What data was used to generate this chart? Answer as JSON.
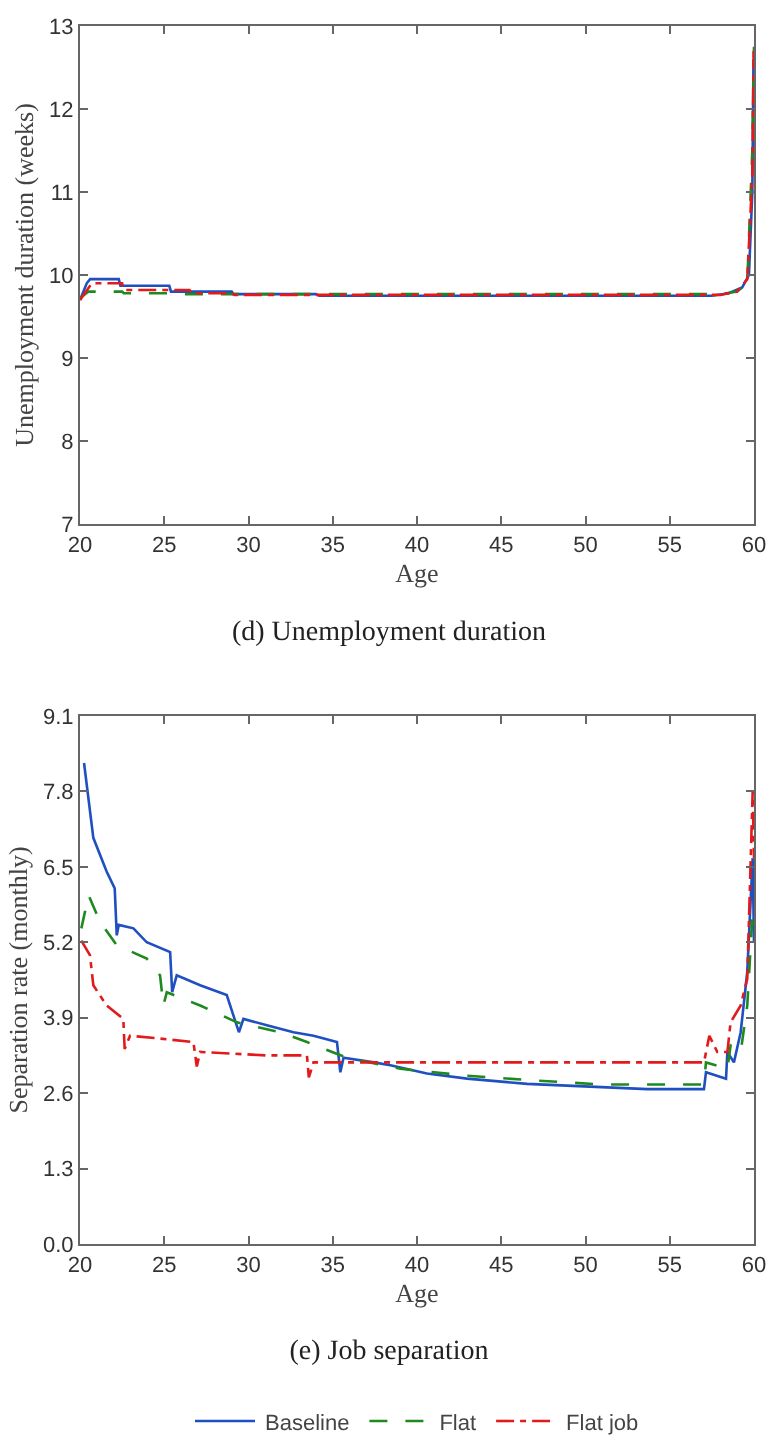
{
  "chart_data": [
    {
      "type": "line",
      "title": "(d) Unemployment duration",
      "xlabel": "Age",
      "ylabel": "Unemployment duration (weeks)",
      "xlim": [
        20,
        60
      ],
      "xticks": [
        20,
        25,
        30,
        35,
        40,
        45,
        50,
        55,
        60
      ],
      "ylim": [
        7,
        13
      ],
      "yticks": [
        7,
        8,
        9,
        10,
        11,
        12,
        13
      ],
      "grid": false,
      "series": [
        {
          "color": "#1f4fc0",
          "line_style": "solid",
          "x": [
            20,
            20.4,
            20.6,
            22.3,
            22.4,
            25.3,
            25.4,
            29,
            29.1,
            34,
            34.2,
            57.5,
            58.5,
            59.3,
            59.7,
            59.9,
            59.97
          ],
          "values": [
            9.7,
            9.9,
            9.95,
            9.95,
            9.87,
            9.87,
            9.8,
            9.8,
            9.77,
            9.77,
            9.75,
            9.75,
            9.78,
            9.85,
            10,
            11,
            12.6
          ]
        },
        {
          "color": "#1e8a1e",
          "line_style": "dashed",
          "x": [
            20,
            20.5,
            22.5,
            22.6,
            26,
            26.2,
            58,
            59,
            59.6,
            59.9,
            60
          ],
          "values": [
            9.72,
            9.8,
            9.8,
            9.78,
            9.78,
            9.77,
            9.77,
            9.8,
            9.9,
            11.5,
            12.75
          ]
        },
        {
          "color": "#e31a1c",
          "line_style": "dashdot",
          "x": [
            20,
            20.7,
            22.5,
            22.6,
            26.5,
            26.6,
            29,
            29.2,
            58,
            59,
            59.6,
            59.9,
            59.98
          ],
          "values": [
            9.7,
            9.9,
            9.9,
            9.82,
            9.82,
            9.78,
            9.78,
            9.76,
            9.76,
            9.8,
            9.95,
            11.2,
            12.7
          ]
        }
      ]
    },
    {
      "type": "line",
      "title": "(e) Job separation",
      "xlabel": "Age",
      "ylabel": "Separation rate (monthly)",
      "xlim": [
        20,
        60
      ],
      "xticks": [
        20,
        25,
        30,
        35,
        40,
        45,
        50,
        55,
        60
      ],
      "ylim": [
        0,
        9.1
      ],
      "yticks": [
        {
          "value": 0,
          "label": "0.0"
        },
        1.3,
        2.6,
        3.9,
        5.2,
        6.5,
        7.8,
        9.1
      ],
      "grid": false,
      "legend": "bottom",
      "series": [
        {
          "name": "Baseline",
          "color": "#1f4fc0",
          "line_style": "solid",
          "x": [
            20.24,
            20.79,
            21.58,
            22.06,
            22.18,
            22.3,
            23.17,
            23.96,
            25.35,
            25.47,
            25.74,
            27.13,
            28.71,
            29.43,
            29.7,
            31.09,
            32.67,
            33.86,
            35.25,
            35.45,
            35.64,
            37.43,
            38.42,
            40.59,
            42.97,
            46.53,
            53.66,
            57.03,
            57.15,
            58.34,
            58.42,
            58.81,
            59.21,
            59.6,
            59.92,
            60
          ],
          "values": [
            8.29,
            7.0,
            6.42,
            6.13,
            5.32,
            5.5,
            5.44,
            5.2,
            5.03,
            4.34,
            4.63,
            4.46,
            4.29,
            3.65,
            3.88,
            3.77,
            3.65,
            3.59,
            3.48,
            2.96,
            3.21,
            3.13,
            3.08,
            2.94,
            2.85,
            2.76,
            2.67,
            2.67,
            2.96,
            2.85,
            3.31,
            3.13,
            3.65,
            4.69,
            6.65,
            5.2
          ]
        },
        {
          "name": "Flat",
          "color": "#1e8a1e",
          "line_style": "dashed",
          "x": [
            20.08,
            20.51,
            21.19,
            22.18,
            23.96,
            24.75,
            24.95,
            25.15,
            27.13,
            29.31,
            31.88,
            33.47,
            35.84,
            39.01,
            42.97,
            46.93,
            50.89,
            57.03,
            57.15,
            58.42,
            58.61,
            59.21,
            59.6,
            59.92,
            60
          ],
          "values": [
            5.44,
            6.01,
            5.55,
            5.15,
            4.92,
            4.63,
            4.11,
            4.34,
            4.11,
            3.82,
            3.65,
            3.48,
            3.21,
            3.02,
            2.9,
            2.82,
            2.75,
            2.75,
            3.13,
            3.02,
            3.42,
            3.31,
            4.11,
            5.73,
            5.5
          ]
        },
        {
          "name": "Flat job",
          "color": "#e31a1c",
          "line_style": "dashdot",
          "x": [
            20.08,
            20.59,
            20.79,
            21.58,
            22.57,
            22.65,
            22.97,
            24.75,
            26.73,
            26.93,
            27.13,
            31.09,
            33.47,
            33.58,
            33.86,
            57.03,
            57.35,
            57.82,
            58.42,
            58.61,
            59.21,
            59.6,
            59.92,
            60
          ],
          "values": [
            5.23,
            4.98,
            4.46,
            4.11,
            3.88,
            3.36,
            3.59,
            3.54,
            3.48,
            3.06,
            3.31,
            3.25,
            3.25,
            2.87,
            3.13,
            3.13,
            3.59,
            3.31,
            3.31,
            3.82,
            4.11,
            4.57,
            7.8,
            6.65
          ]
        }
      ]
    }
  ]
}
